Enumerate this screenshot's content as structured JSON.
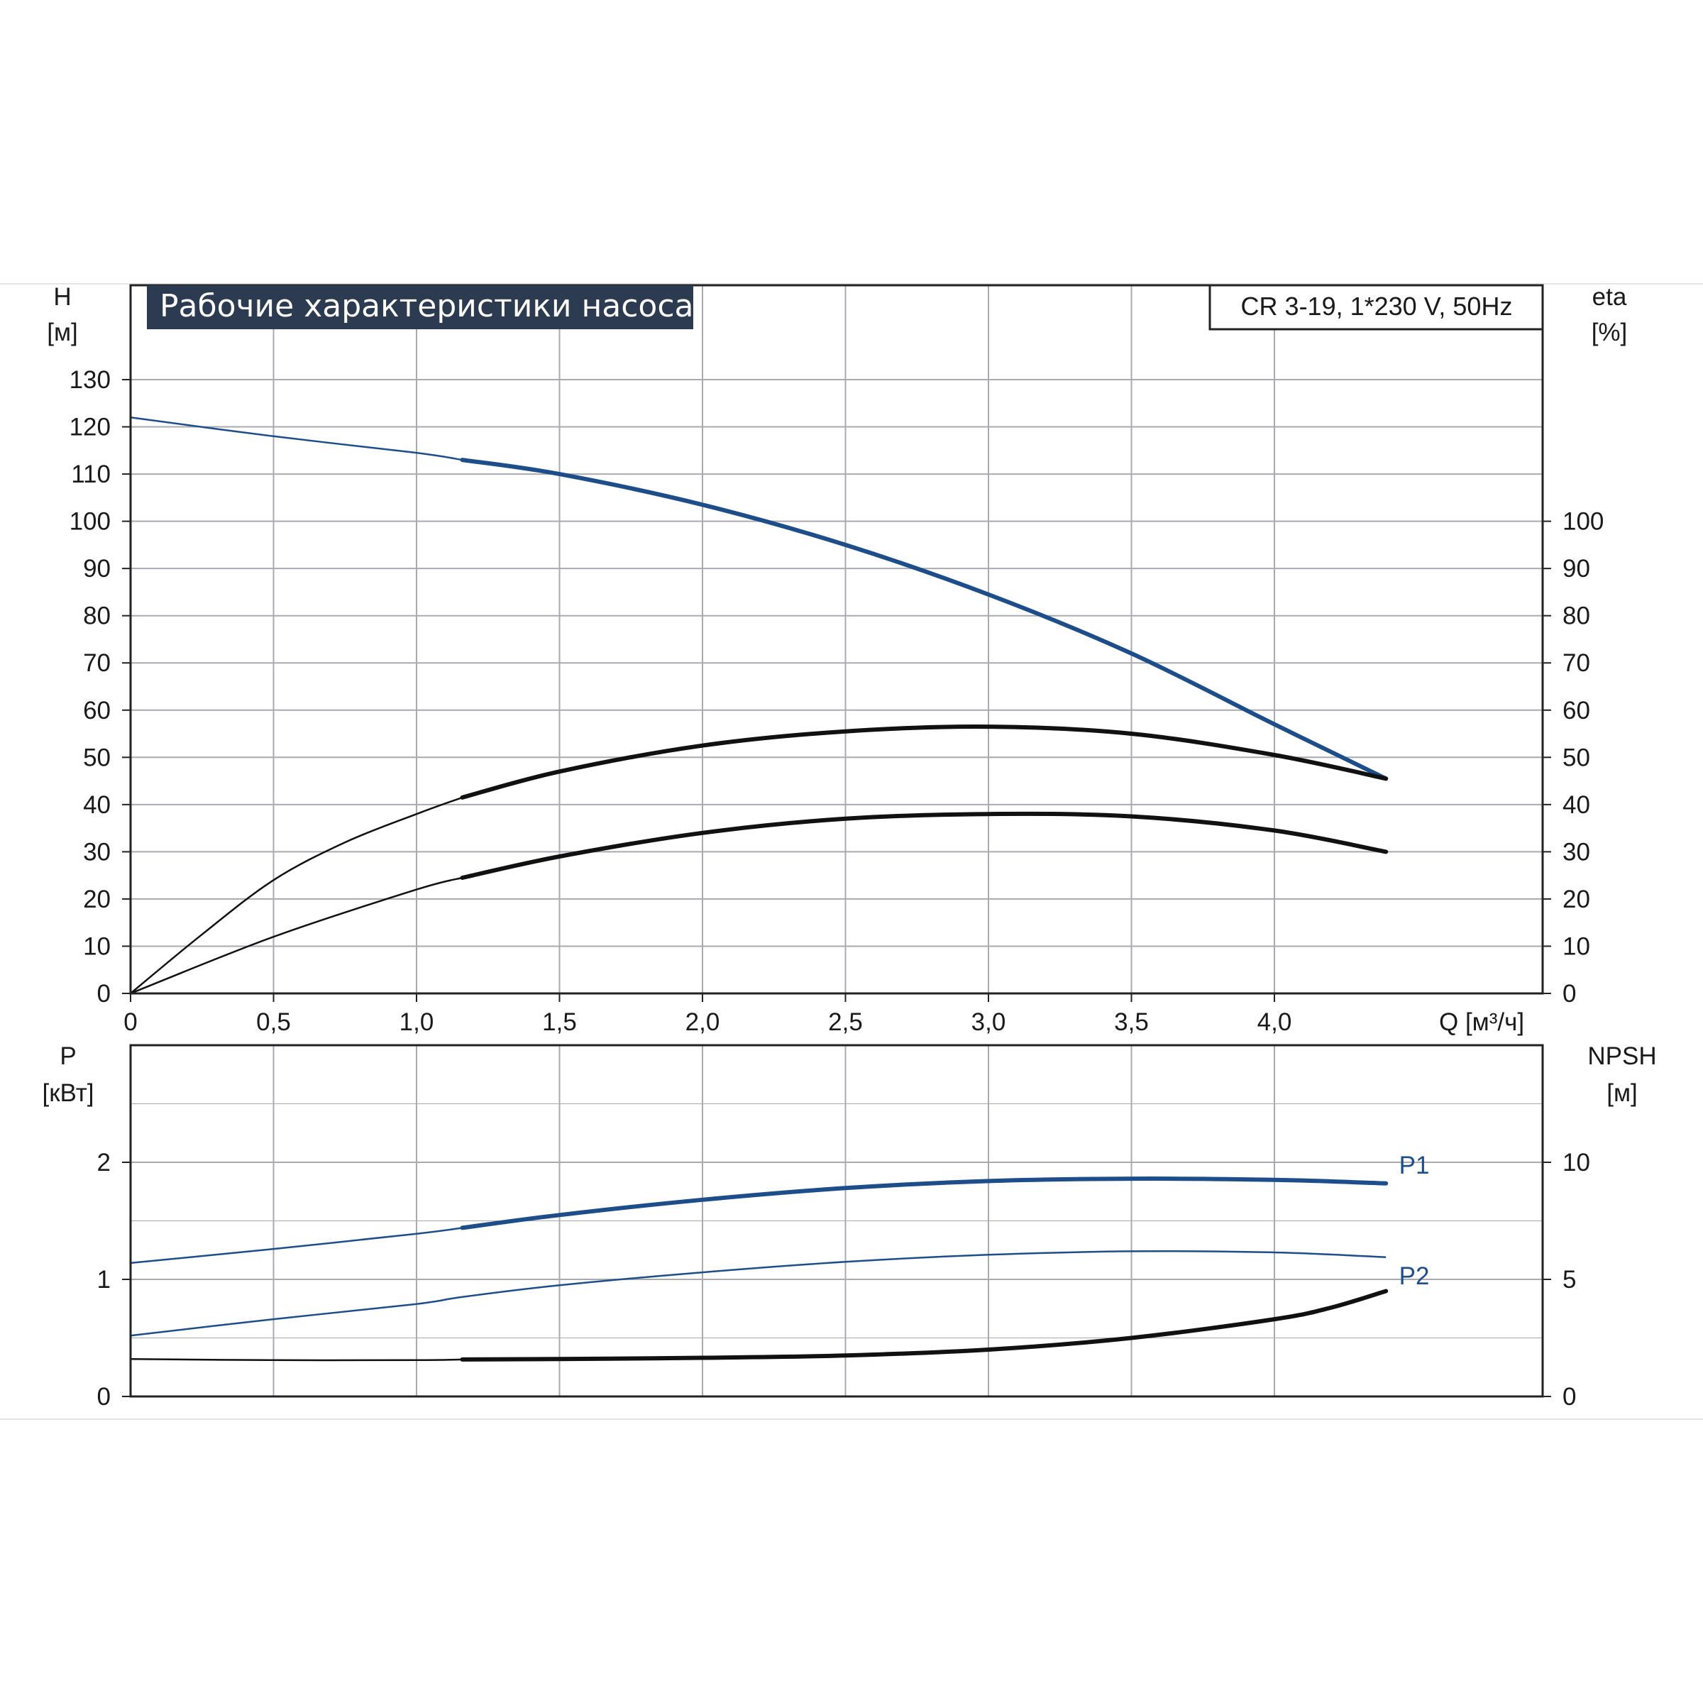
{
  "title": "Рабочие характеристики насоса",
  "model": "CR 3-19, 1*230 V, 50Hz",
  "colors": {
    "blue": "#1d4e89",
    "black": "#111111",
    "grid": "#a9aab0",
    "title_bg": "#2c3b4f"
  },
  "chart_data": [
    {
      "type": "line",
      "name_top": "head_efficiency",
      "x_axis": {
        "label": "Q [м³/ч]",
        "xlim": [
          0,
          4.8
        ],
        "ticks": [
          0,
          0.5,
          1.0,
          1.5,
          2.0,
          2.5,
          3.0,
          3.5,
          4.0
        ],
        "tick_labels": [
          "0",
          "0,5",
          "1,0",
          "1,5",
          "2,0",
          "2,5",
          "3,0",
          "3,5",
          "4,0"
        ]
      },
      "y_left": {
        "label_line1": "H",
        "label_line2": "[м]",
        "ylim": [
          0,
          140
        ],
        "ticks": [
          0,
          10,
          20,
          30,
          40,
          50,
          60,
          70,
          80,
          90,
          100,
          110,
          120,
          130
        ]
      },
      "y_right": {
        "label_line1": "eta",
        "label_line2": "[%]",
        "ticks": [
          0,
          10,
          20,
          30,
          40,
          50,
          60,
          70,
          80,
          90,
          100
        ]
      },
      "grid": true,
      "series": [
        {
          "key": "H",
          "color": "blue",
          "bold_from": 1.16,
          "x": [
            0,
            0.5,
            1.0,
            1.16,
            1.5,
            2.0,
            2.5,
            3.0,
            3.5,
            4.0,
            4.39
          ],
          "y": [
            122,
            118,
            114.5,
            113,
            110,
            103.5,
            95,
            84.5,
            72,
            57,
            45.5
          ]
        },
        {
          "key": "eta",
          "color": "black",
          "bold_from": 1.16,
          "x": [
            0,
            0.25,
            0.5,
            0.75,
            1.0,
            1.16,
            1.5,
            2.0,
            2.5,
            3.0,
            3.5,
            4.0,
            4.39
          ],
          "y": [
            0,
            12.5,
            24,
            32,
            38,
            41.5,
            47,
            52.5,
            55.5,
            56.5,
            55,
            50.5,
            45.5
          ]
        },
        {
          "key": "eta_total",
          "color": "black",
          "bold_from": 1.16,
          "x": [
            0,
            0.5,
            1.0,
            1.16,
            1.5,
            2.0,
            2.5,
            3.0,
            3.5,
            4.0,
            4.39
          ],
          "y": [
            0,
            12,
            22,
            24.5,
            29,
            34,
            37,
            38,
            37.5,
            34.5,
            30
          ]
        }
      ]
    },
    {
      "type": "line",
      "name_bottom": "power_npsh",
      "x_axis": {
        "xlim": [
          0,
          4.8
        ],
        "ticks": [
          0,
          0.5,
          1.0,
          1.5,
          2.0,
          2.5,
          3.0,
          3.5,
          4.0
        ]
      },
      "y_left": {
        "label_line1": "P",
        "label_line2": "[кВт]",
        "ylim": [
          0,
          3
        ],
        "ticks": [
          0,
          1,
          2
        ]
      },
      "y_right": {
        "label_line1": "NPSH",
        "label_line2": "[м]",
        "ylim": [
          0,
          15
        ],
        "ticks": [
          0,
          5,
          10
        ]
      },
      "grid": true,
      "series": [
        {
          "key": "P1",
          "name": "P1",
          "color": "blue",
          "bold_from": 1.16,
          "axis": "left",
          "x": [
            0,
            0.5,
            1.0,
            1.16,
            1.5,
            2.0,
            2.5,
            3.0,
            3.5,
            4.0,
            4.39
          ],
          "y": [
            1.14,
            1.26,
            1.39,
            1.44,
            1.55,
            1.68,
            1.78,
            1.84,
            1.86,
            1.85,
            1.82
          ]
        },
        {
          "key": "P2",
          "name": "P2",
          "color": "blue",
          "bold_from": 99,
          "axis": "left",
          "x": [
            0,
            0.5,
            1.0,
            1.16,
            1.5,
            2.0,
            2.5,
            3.0,
            3.5,
            4.0,
            4.39
          ],
          "y": [
            0.52,
            0.66,
            0.79,
            0.85,
            0.95,
            1.06,
            1.15,
            1.21,
            1.24,
            1.23,
            1.19
          ]
        },
        {
          "key": "NPSH",
          "color": "black",
          "bold_from": 1.16,
          "axis": "right",
          "x": [
            0,
            0.5,
            1.0,
            1.16,
            1.5,
            2.0,
            2.5,
            3.0,
            3.5,
            4.0,
            4.2,
            4.39
          ],
          "y": [
            1.6,
            1.55,
            1.55,
            1.58,
            1.6,
            1.65,
            1.75,
            2.0,
            2.5,
            3.3,
            3.8,
            4.5
          ]
        }
      ]
    }
  ]
}
